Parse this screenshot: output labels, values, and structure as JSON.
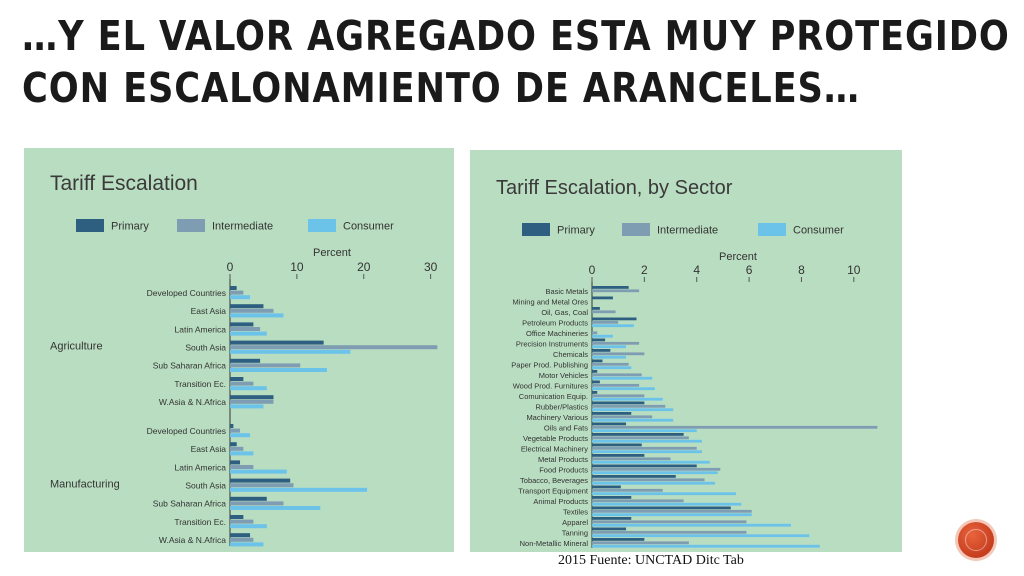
{
  "slide": {
    "title_line1": "…Y EL VALOR AGREGADO ESTA MUY PROTEGIDO",
    "title_line2": "CON ESCALONAMIENTO DE ARANCELES…",
    "source": "2015  Fuente: UNCTAD  Ditc Tab"
  },
  "colors": {
    "panel_bg": "#b9ddc1",
    "primary": "#2e5f80",
    "intermediate": "#7f9db2",
    "consumer": "#6cc3ea"
  },
  "chart_data": [
    {
      "type": "bar",
      "orientation": "horizontal",
      "title": "Tariff Escalation",
      "xlabel": "Percent",
      "xlim": [
        0,
        32
      ],
      "xticks": [
        0,
        10,
        20,
        30
      ],
      "legend": [
        "Primary",
        "Intermediate",
        "Consumer"
      ],
      "legend_position": "top",
      "groups": [
        {
          "label": "Agriculture",
          "categories": [
            "Developed Countries",
            "East Asia",
            "Latin America",
            "South Asia",
            "Sub Saharan Africa",
            "Transition Ec.",
            "W.Asia & N.Africa"
          ],
          "series": [
            {
              "name": "Primary",
              "values": [
                1,
                5,
                3.5,
                14,
                4.5,
                2,
                6.5
              ]
            },
            {
              "name": "Intermediate",
              "values": [
                2,
                6.5,
                4.5,
                31,
                10.5,
                3.5,
                6.5
              ]
            },
            {
              "name": "Consumer",
              "values": [
                3,
                8,
                5.5,
                18,
                14.5,
                5.5,
                5
              ]
            }
          ]
        },
        {
          "label": "Manufacturing",
          "categories": [
            "Developed Countries",
            "East Asia",
            "Latin America",
            "South Asia",
            "Sub Saharan Africa",
            "Transition Ec.",
            "W.Asia & N.Africa"
          ],
          "series": [
            {
              "name": "Primary",
              "values": [
                0.5,
                1,
                1.5,
                9,
                5.5,
                2,
                3
              ]
            },
            {
              "name": "Intermediate",
              "values": [
                1.5,
                2,
                3.5,
                9.5,
                8,
                3.5,
                3.5
              ]
            },
            {
              "name": "Consumer",
              "values": [
                3,
                3.5,
                8.5,
                20.5,
                13.5,
                5.5,
                5
              ]
            }
          ]
        }
      ]
    },
    {
      "type": "bar",
      "orientation": "horizontal",
      "title": "Tariff Escalation, by Sector",
      "xlabel": "Percent",
      "xlim": [
        0,
        11
      ],
      "xticks": [
        0,
        2,
        4,
        6,
        8,
        10
      ],
      "legend": [
        "Primary",
        "Intermediate",
        "Consumer"
      ],
      "legend_position": "top",
      "categories": [
        "Basic Metals",
        "Mining and Metal Ores",
        "Oil, Gas, Coal",
        "Petroleum Products",
        "Office Machineries",
        "Precision Instruments",
        "Chemicals",
        "Paper Prod. Publishing",
        "Motor Vehicles",
        "Wood Prod. Furnitures",
        "Comunication Equip.",
        "Rubber/Plastics",
        "Machinery Various",
        "Oils and Fats",
        "Vegetable Products",
        "Electrical Machinery",
        "Metal Products",
        "Food Products",
        "Tobacco, Beverages",
        "Transport Equipment",
        "Animal Products",
        "Textiles",
        "Apparel",
        "Tanning",
        "Non-Metallic Mineral"
      ],
      "series": [
        {
          "name": "Primary",
          "values": [
            1.4,
            0.8,
            0.3,
            1.7,
            0,
            0.5,
            0.7,
            0.4,
            0.2,
            0.3,
            0.2,
            2.0,
            1.5,
            1.3,
            3.5,
            1.9,
            2.0,
            4.0,
            3.2,
            1.1,
            1.5,
            5.3,
            1.5,
            1.3,
            2.0
          ]
        },
        {
          "name": "Intermediate",
          "values": [
            1.8,
            0,
            0.9,
            1.0,
            0.2,
            1.8,
            2.0,
            1.4,
            1.9,
            1.8,
            2.0,
            2.8,
            2.3,
            10.9,
            3.7,
            4.0,
            3.0,
            4.9,
            4.3,
            2.7,
            3.5,
            6.1,
            5.9,
            5.9,
            3.7
          ]
        },
        {
          "name": "Consumer",
          "values": [
            0,
            0,
            0,
            1.6,
            0.8,
            1.3,
            1.3,
            1.5,
            2.3,
            2.4,
            2.7,
            3.1,
            3.1,
            4.0,
            4.2,
            4.2,
            4.5,
            4.8,
            4.7,
            5.5,
            5.7,
            6.1,
            7.6,
            8.3,
            8.7
          ]
        }
      ]
    }
  ]
}
